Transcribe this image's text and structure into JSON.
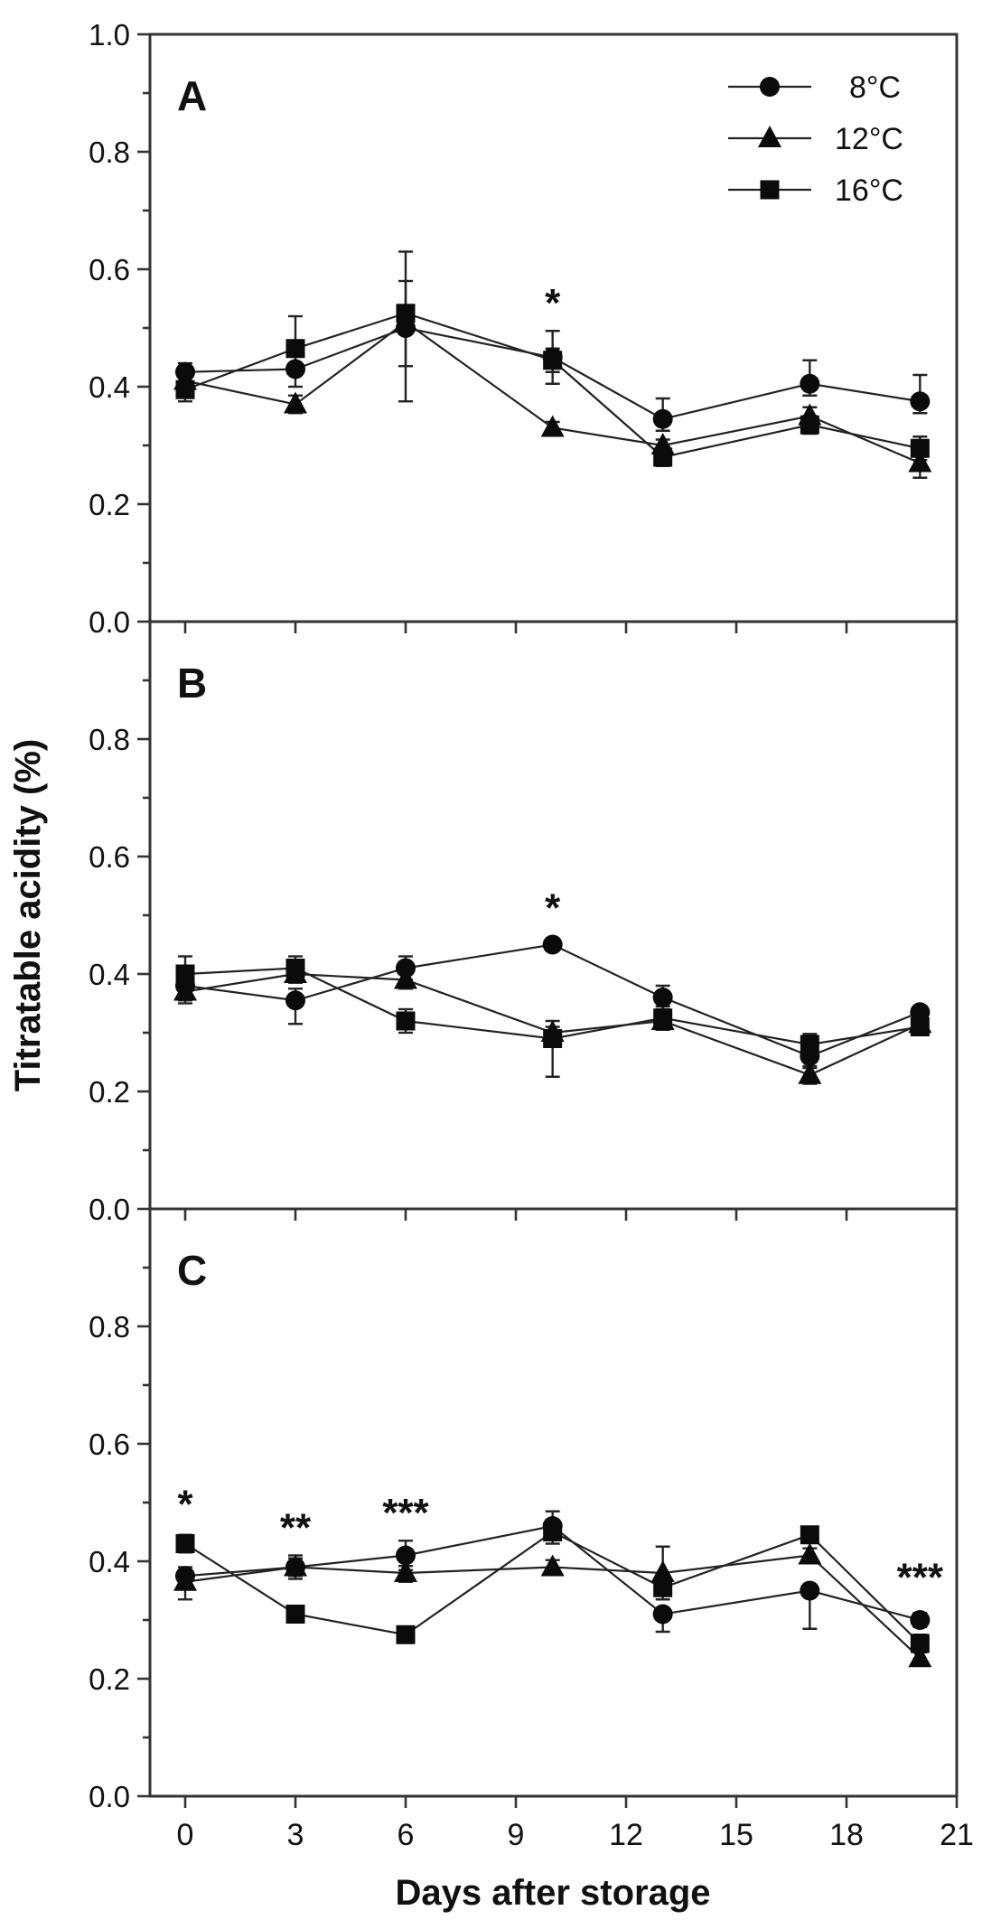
{
  "colors": {
    "ink": "#111111",
    "series_line": "#232323",
    "frame": "#333333",
    "marker_fill": "#0b0b0b",
    "background": "#ffffff"
  },
  "chart_data": {
    "type": "line",
    "title": "",
    "xlabel": "Days after storage",
    "ylabel": "Titratable acidity (%)",
    "x_axis": {
      "min": 0,
      "max": 21,
      "major_ticks": [
        0,
        3,
        6,
        9,
        12,
        15,
        18,
        21
      ]
    },
    "y_axis": {
      "min": 0.0,
      "max": 1.0,
      "major_step": 0.2,
      "minor_step": 0.1
    },
    "x_days": [
      0,
      3,
      6,
      10,
      13,
      17,
      20
    ],
    "legend": {
      "position": "top-right-panel-A",
      "entries": [
        {
          "label": "8°C",
          "marker": "circle"
        },
        {
          "label": "12°C",
          "marker": "triangle"
        },
        {
          "label": "16°C",
          "marker": "square"
        }
      ]
    },
    "panels": [
      {
        "label": "A",
        "show_max_tick_label": true,
        "series": [
          {
            "name": "8°C",
            "marker": "circle",
            "values": [
              0.425,
              0.43,
              0.5,
              0.45,
              0.345,
              0.405,
              0.375
            ],
            "err_up": [
              0.015,
              0.03,
              0.08,
              0.045,
              0.035,
              0.04,
              0.045
            ],
            "err_down": [
              0.015,
              0.03,
              0.125,
              0.045,
              0.02,
              0.02,
              0.02
            ]
          },
          {
            "name": "12°C",
            "marker": "triangle",
            "values": [
              0.41,
              0.37,
              0.51,
              0.33,
              0.3,
              0.35,
              0.27
            ],
            "err_up": [
              0.01,
              0.015,
              0,
              0.01,
              0.01,
              0.015,
              0.025
            ],
            "err_down": [
              0.01,
              0.015,
              0,
              0.01,
              0.01,
              0.015,
              0.025
            ]
          },
          {
            "name": "16°C",
            "marker": "square",
            "values": [
              0.395,
              0.465,
              0.525,
              0.445,
              0.28,
              0.335,
              0.295
            ],
            "err_up": [
              0.02,
              0.055,
              0.105,
              0.02,
              0.015,
              0.015,
              0.02
            ],
            "err_down": [
              0.02,
              0.04,
              0.09,
              0.02,
              0.015,
              0.015,
              0.02
            ]
          }
        ],
        "significance": [
          {
            "day": 10,
            "y": 0.52,
            "text": "*"
          }
        ]
      },
      {
        "label": "B",
        "show_max_tick_label": false,
        "series": [
          {
            "name": "8°C",
            "marker": "circle",
            "values": [
              0.38,
              0.355,
              0.41,
              0.45,
              0.36,
              0.26,
              0.335
            ],
            "err_up": [
              0.02,
              0.02,
              0.02,
              0.01,
              0.02,
              0.02,
              0.01
            ],
            "err_down": [
              0.02,
              0.04,
              0.02,
              0.01,
              0.02,
              0.02,
              0.01
            ]
          },
          {
            "name": "12°C",
            "marker": "triangle",
            "values": [
              0.37,
              0.4,
              0.39,
              0.3,
              0.32,
              0.228,
              0.315
            ],
            "err_up": [
              0.02,
              0.015,
              0.015,
              0.02,
              0.015,
              0.015,
              0.01
            ],
            "err_down": [
              0.02,
              0.015,
              0.015,
              0.02,
              0.015,
              0.015,
              0.01
            ]
          },
          {
            "name": "16°C",
            "marker": "square",
            "values": [
              0.4,
              0.41,
              0.32,
              0.29,
              0.325,
              0.28,
              0.31
            ],
            "err_up": [
              0.03,
              0.02,
              0.02,
              0.02,
              0.02,
              0.018,
              0.01
            ],
            "err_down": [
              0.045,
              0.02,
              0.02,
              0.065,
              0.02,
              0.018,
              0.01
            ]
          }
        ],
        "significance": [
          {
            "day": 10,
            "y": 0.49,
            "text": "*"
          }
        ]
      },
      {
        "label": "C",
        "show_max_tick_label": false,
        "series": [
          {
            "name": "8°C",
            "marker": "circle",
            "values": [
              0.375,
              0.39,
              0.41,
              0.46,
              0.31,
              0.35,
              0.3
            ],
            "err_up": [
              0.015,
              0.02,
              0.025,
              0.025,
              0.01,
              0.01,
              0.012
            ],
            "err_down": [
              0.015,
              0.02,
              0.025,
              0.012,
              0.03,
              0.065,
              0.012
            ]
          },
          {
            "name": "12°C",
            "marker": "triangle",
            "values": [
              0.365,
              0.39,
              0.38,
              0.39,
              0.38,
              0.41,
              0.235
            ],
            "err_up": [
              0.01,
              0.015,
              0.012,
              0.012,
              0.045,
              0.012,
              0.01
            ],
            "err_down": [
              0.03,
              0.015,
              0.015,
              0.012,
              0.012,
              0.012,
              0.01
            ]
          },
          {
            "name": "16°C",
            "marker": "square",
            "values": [
              0.43,
              0.31,
              0.275,
              0.45,
              0.355,
              0.445,
              0.26
            ],
            "err_up": [
              0.015,
              0.006,
              0.006,
              0.02,
              0.02,
              0.012,
              0.015
            ],
            "err_down": [
              0.015,
              0.006,
              0.006,
              0.02,
              0.02,
              0.012,
              0.015
            ]
          }
        ],
        "significance": [
          {
            "day": 0,
            "y": 0.475,
            "text": "*"
          },
          {
            "day": 3,
            "y": 0.435,
            "text": "**"
          },
          {
            "day": 6,
            "y": 0.46,
            "text": "***"
          },
          {
            "day": 20,
            "y": 0.35,
            "text": "***"
          }
        ]
      }
    ]
  }
}
